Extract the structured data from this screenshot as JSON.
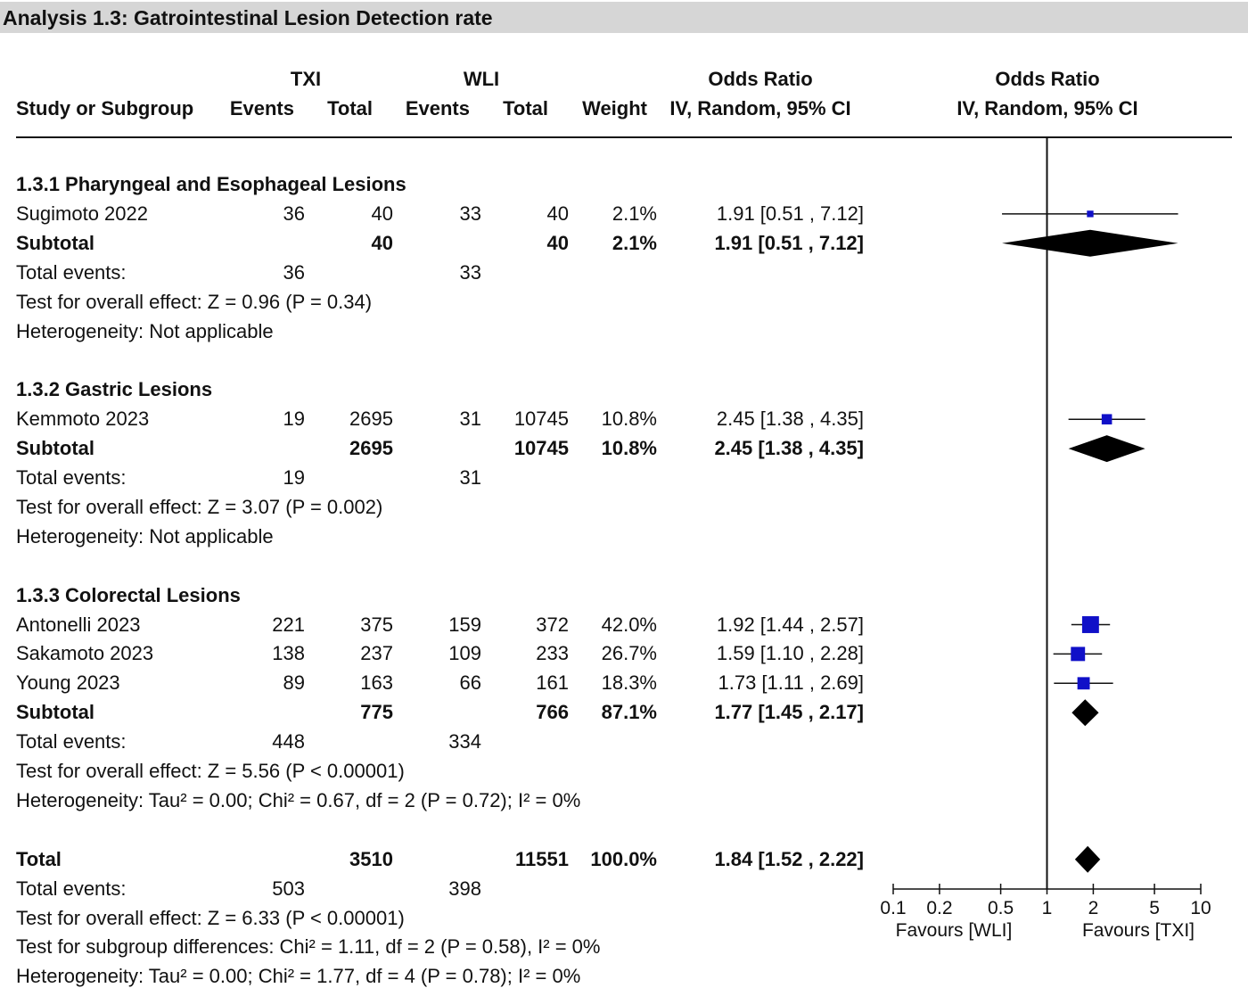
{
  "title": "Analysis 1.3: Gatrointestinal Lesion Detection rate",
  "header": {
    "group1": "TXI",
    "group2": "WLI",
    "or_table": "Odds Ratio",
    "or_plot": "Odds Ratio",
    "study": "Study or Subgroup",
    "events1": "Events",
    "total1": "Total",
    "events2": "Events",
    "total2": "Total",
    "weight": "Weight",
    "method_table": "IV, Random, 95% CI",
    "method_plot": "IV, Random, 95% CI"
  },
  "rows": [
    {
      "type": "group",
      "label": "1.3.1 Pharyngeal and Esophageal Lesions"
    },
    {
      "type": "study",
      "label": "Sugimoto 2022",
      "e1": "36",
      "t1": "40",
      "e2": "33",
      "t2": "40",
      "w": "2.1%",
      "ci": "1.91 [0.51 , 7.12]"
    },
    {
      "type": "subtotal",
      "label": "Subtotal",
      "t1": "40",
      "t2": "40",
      "w": "2.1%",
      "ci": "1.91 [0.51 , 7.12]"
    },
    {
      "type": "events",
      "label": "Total events:",
      "e1": "36",
      "e2": "33"
    },
    {
      "type": "note",
      "label": "Test for overall effect: Z = 0.96 (P = 0.34)"
    },
    {
      "type": "note",
      "label": "Heterogeneity: Not applicable"
    },
    {
      "type": "blank"
    },
    {
      "type": "group",
      "label": "1.3.2 Gastric Lesions"
    },
    {
      "type": "study",
      "label": "Kemmoto 2023",
      "e1": "19",
      "t1": "2695",
      "e2": "31",
      "t2": "10745",
      "w": "10.8%",
      "ci": "2.45 [1.38 , 4.35]"
    },
    {
      "type": "subtotal",
      "label": "Subtotal",
      "t1": "2695",
      "t2": "10745",
      "w": "10.8%",
      "ci": "2.45 [1.38 , 4.35]"
    },
    {
      "type": "events",
      "label": "Total events:",
      "e1": "19",
      "e2": "31"
    },
    {
      "type": "note",
      "label": "Test for overall effect: Z = 3.07 (P = 0.002)"
    },
    {
      "type": "note",
      "label": "Heterogeneity: Not applicable"
    },
    {
      "type": "blank"
    },
    {
      "type": "group",
      "label": "1.3.3 Colorectal Lesions"
    },
    {
      "type": "study",
      "label": "Antonelli 2023",
      "e1": "221",
      "t1": "375",
      "e2": "159",
      "t2": "372",
      "w": "42.0%",
      "ci": "1.92 [1.44 , 2.57]"
    },
    {
      "type": "study",
      "label": "Sakamoto 2023",
      "e1": "138",
      "t1": "237",
      "e2": "109",
      "t2": "233",
      "w": "26.7%",
      "ci": "1.59 [1.10 , 2.28]"
    },
    {
      "type": "study",
      "label": "Young 2023",
      "e1": "89",
      "t1": "163",
      "e2": "66",
      "t2": "161",
      "w": "18.3%",
      "ci": "1.73 [1.11 , 2.69]"
    },
    {
      "type": "subtotal",
      "label": "Subtotal",
      "t1": "775",
      "t2": "766",
      "w": "87.1%",
      "ci": "1.77 [1.45 , 2.17]"
    },
    {
      "type": "events",
      "label": "Total events:",
      "e1": "448",
      "e2": "334"
    },
    {
      "type": "note",
      "label": "Test for overall effect: Z = 5.56 (P < 0.00001)"
    },
    {
      "type": "note",
      "label": "Heterogeneity: Tau² = 0.00; Chi² = 0.67, df = 2 (P = 0.72); I² = 0%"
    },
    {
      "type": "blank"
    },
    {
      "type": "subtotal",
      "label": "Total",
      "t1": "3510",
      "t2": "11551",
      "w": "100.0%",
      "ci": "1.84 [1.52 , 2.22]"
    },
    {
      "type": "events",
      "label": "Total events:",
      "e1": "503",
      "e2": "398"
    },
    {
      "type": "note",
      "label": "Test for overall effect: Z = 6.33 (P < 0.00001)"
    },
    {
      "type": "note",
      "label": "Test for subgroup differences: Chi² = 1.11, df = 2 (P = 0.58), I² = 0%"
    },
    {
      "type": "note",
      "label": "Heterogeneity: Tau² = 0.00; Chi² = 1.77, df = 4 (P = 0.78); I² = 0%"
    }
  ],
  "chart_data": {
    "type": "forest",
    "scale": "log",
    "xlim": [
      0.1,
      10
    ],
    "null_value": 1,
    "ticks": [
      0.1,
      0.2,
      0.5,
      1,
      2,
      5,
      10
    ],
    "tick_labels": [
      "0.1",
      "0.2",
      "0.5",
      "1",
      "2",
      "5",
      "10"
    ],
    "favours_left": "Favours [WLI]",
    "favours_right": "Favours [TXI]",
    "marker_color": "#1010c8",
    "studies": [
      {
        "row": 1,
        "or": 1.91,
        "lo": 0.51,
        "hi": 7.12,
        "weight": 2.1
      },
      {
        "row": 8,
        "or": 2.45,
        "lo": 1.38,
        "hi": 4.35,
        "weight": 10.8
      },
      {
        "row": 15,
        "or": 1.92,
        "lo": 1.44,
        "hi": 2.57,
        "weight": 42.0
      },
      {
        "row": 16,
        "or": 1.59,
        "lo": 1.1,
        "hi": 2.28,
        "weight": 26.7
      },
      {
        "row": 17,
        "or": 1.73,
        "lo": 1.11,
        "hi": 2.69,
        "weight": 18.3
      }
    ],
    "diamonds": [
      {
        "row": 2,
        "or": 1.91,
        "lo": 0.51,
        "hi": 7.12
      },
      {
        "row": 9,
        "or": 2.45,
        "lo": 1.38,
        "hi": 4.35
      },
      {
        "row": 18,
        "or": 1.77,
        "lo": 1.45,
        "hi": 2.17
      },
      {
        "row": 23,
        "or": 1.84,
        "lo": 1.52,
        "hi": 2.22
      }
    ]
  }
}
